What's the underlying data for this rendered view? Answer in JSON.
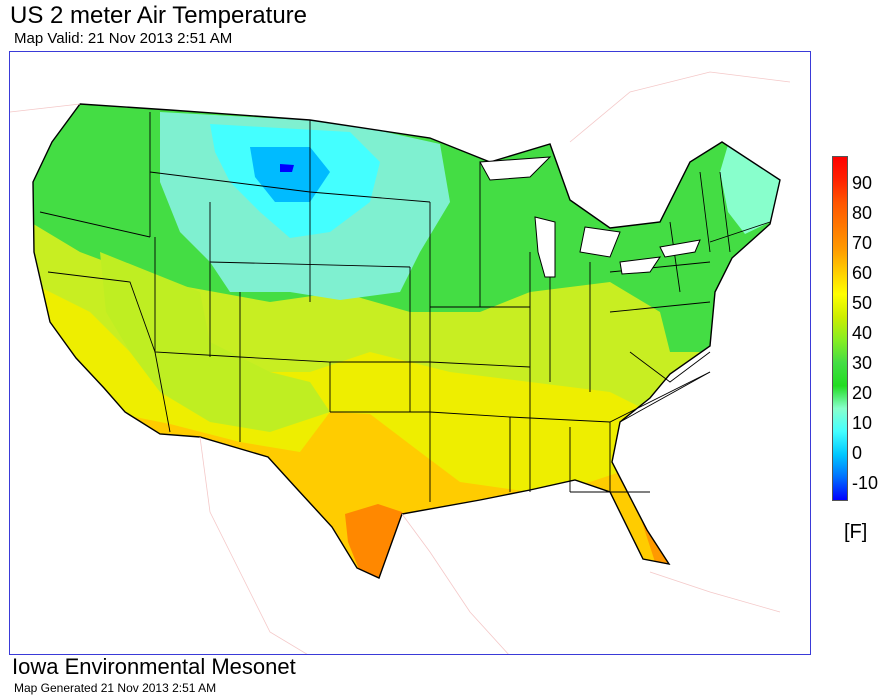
{
  "header": {
    "title": "US 2 meter Air Temperature",
    "valid": "Map Valid: 21 Nov 2013 2:51 AM"
  },
  "legend": {
    "unit": "[F]",
    "ticks": [
      "90",
      "80",
      "70",
      "60",
      "50",
      "40",
      "30",
      "20",
      "10",
      "0",
      "-10"
    ],
    "colors": [
      "#0000ff",
      "#0070ff",
      "#00c8ff",
      "#44ffff",
      "#88ffcc",
      "#22dd22",
      "#44dd44",
      "#88ee22",
      "#ccee00",
      "#ffff00",
      "#ffcc00",
      "#ff9900",
      "#ff7700",
      "#ff5500",
      "#ff2200",
      "#ff0000"
    ]
  },
  "footer": {
    "org": "Iowa Environmental Mesonet",
    "generated": "Map Generated 21 Nov 2013 2:51 AM"
  }
}
